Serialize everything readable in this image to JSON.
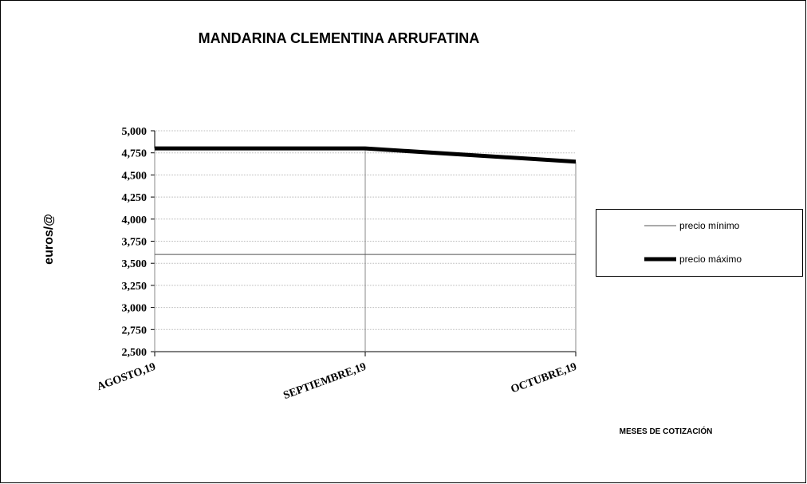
{
  "chart_data": {
    "type": "line",
    "title": "MANDARINA CLEMENTINA ARRUFATINA",
    "x_label": "MESES DE COTIZACIÓN",
    "y_label": "euros/@",
    "categories": [
      "AGOSTO,19",
      "SEPTIEMBRE,19",
      "OCTUBRE,19"
    ],
    "series": [
      {
        "name": "precio mínimo",
        "color": "#555555",
        "values": [
          3.6,
          3.6,
          3.6
        ]
      },
      {
        "name": "precio máximo",
        "color": "#000000",
        "values": [
          4.8,
          4.8,
          4.65
        ]
      }
    ],
    "ylim": [
      2.5,
      5
    ],
    "yticks": [
      {
        "value": 2.5,
        "label": "2,500"
      },
      {
        "value": 2.75,
        "label": "2,750"
      },
      {
        "value": 3,
        "label": "3,000"
      },
      {
        "value": 3.25,
        "label": "3,250"
      },
      {
        "value": 3.5,
        "label": "3,500"
      },
      {
        "value": 3.75,
        "label": "3,750"
      },
      {
        "value": 4,
        "label": "4,000"
      },
      {
        "value": 4.25,
        "label": "4,250"
      },
      {
        "value": 4.5,
        "label": "4,500"
      },
      {
        "value": 4.75,
        "label": "4,750"
      },
      {
        "value": 5,
        "label": "5,000"
      }
    ],
    "grid": true,
    "drop_lines": true,
    "legend": "right"
  }
}
